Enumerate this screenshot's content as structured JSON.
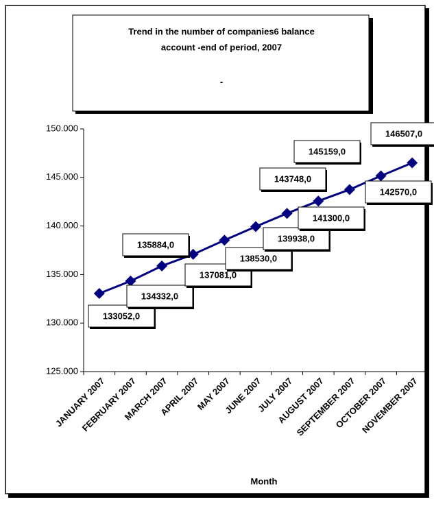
{
  "chart_data": {
    "type": "line",
    "title": "Trend in the number of companies6 balance",
    "title_line2": "account -end of period, 2007",
    "subtitle": "-",
    "x_label": "Month",
    "categories": [
      "JANUARY 2007",
      "FEBRUARY 2007",
      "MARCH 2007",
      "APRIL 2007",
      "MAY 2007",
      "JUNE 2007",
      "JULY 2007",
      "AUGUST 2007",
      "SEPTEMBER 2007",
      "OCTOBER 2007",
      "NOVEMBER 2007"
    ],
    "values": [
      133052,
      134332,
      135884,
      137081,
      138530,
      139938,
      141300,
      142570,
      143748,
      145159,
      146507
    ],
    "value_labels": [
      "133052,0",
      "134332,0",
      "135884,0",
      "137081,0",
      "138530,0",
      "139938,0",
      "141300,0",
      "142570,0",
      "143748,0",
      "145159,0",
      "146507,0"
    ],
    "color": "#000080",
    "ylim": [
      125000,
      150000
    ],
    "yticks": [
      {
        "value": 125000,
        "label": "125.000"
      },
      {
        "value": 130000,
        "label": "130.000"
      },
      {
        "value": 135000,
        "label": "135.000"
      },
      {
        "value": 140000,
        "label": "140.000"
      },
      {
        "value": 145000,
        "label": "145.000"
      },
      {
        "value": 150000,
        "label": "150.000"
      }
    ],
    "grid": false
  }
}
